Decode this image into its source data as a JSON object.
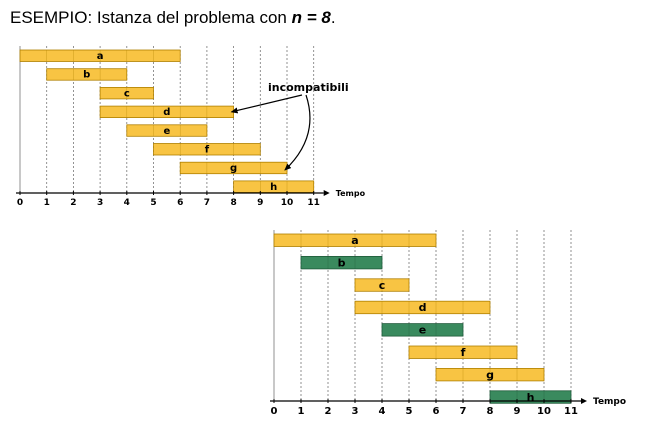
{
  "title": {
    "prefix": "ESEMPIO: Istanza del problema con ",
    "n_expr": "n = 8",
    "suffix": "."
  },
  "colors": {
    "bar": "#f8c443",
    "bar_border": "#b08000",
    "selected": "#3a8a5e",
    "selected_border": "#1f5a3a",
    "grid": "#777777",
    "axis": "#000000"
  },
  "chart_data": [
    {
      "type": "gantt",
      "time_axis": {
        "label": "Tempo",
        "ticks": [
          "0",
          "1",
          "2",
          "3",
          "4",
          "5",
          "6",
          "7",
          "8",
          "9",
          "10",
          "11"
        ],
        "range": [
          0,
          11
        ]
      },
      "intervals": [
        {
          "name": "a",
          "start": 0,
          "end": 6,
          "selected": false
        },
        {
          "name": "b",
          "start": 1,
          "end": 4,
          "selected": false
        },
        {
          "name": "c",
          "start": 3,
          "end": 5,
          "selected": false
        },
        {
          "name": "d",
          "start": 3,
          "end": 8,
          "selected": false
        },
        {
          "name": "e",
          "start": 4,
          "end": 7,
          "selected": false
        },
        {
          "name": "f",
          "start": 5,
          "end": 9,
          "selected": false
        },
        {
          "name": "g",
          "start": 6,
          "end": 10,
          "selected": false
        },
        {
          "name": "h",
          "start": 8,
          "end": 11,
          "selected": false
        }
      ],
      "annotation": {
        "text": "incompatibili",
        "points_to": [
          "d",
          "g"
        ]
      }
    },
    {
      "type": "gantt",
      "time_axis": {
        "label": "Tempo",
        "ticks": [
          "0",
          "1",
          "2",
          "3",
          "4",
          "5",
          "6",
          "7",
          "8",
          "9",
          "10",
          "11"
        ],
        "range": [
          0,
          11
        ]
      },
      "intervals": [
        {
          "name": "a",
          "start": 0,
          "end": 6,
          "selected": false
        },
        {
          "name": "b",
          "start": 1,
          "end": 4,
          "selected": true
        },
        {
          "name": "c",
          "start": 3,
          "end": 5,
          "selected": false
        },
        {
          "name": "d",
          "start": 3,
          "end": 8,
          "selected": false
        },
        {
          "name": "e",
          "start": 4,
          "end": 7,
          "selected": true
        },
        {
          "name": "f",
          "start": 5,
          "end": 9,
          "selected": false
        },
        {
          "name": "g",
          "start": 6,
          "end": 10,
          "selected": false
        },
        {
          "name": "h",
          "start": 8,
          "end": 11,
          "selected": true
        }
      ]
    }
  ]
}
